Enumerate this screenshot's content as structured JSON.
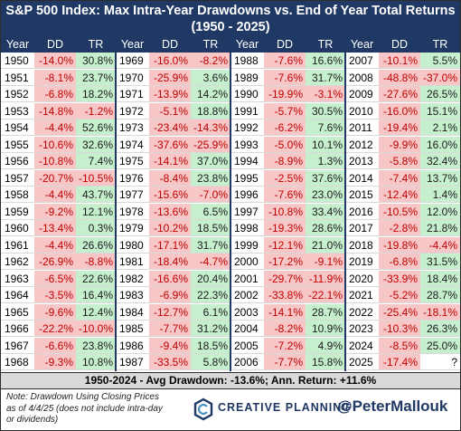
{
  "chart_data": {
    "type": "table",
    "title": "S&P 500 Index: Max Intra-Year Drawdowns vs. End of Year Total Returns",
    "subtitle": "(1950 - 2025)",
    "columns": [
      "Year",
      "DD",
      "TR"
    ],
    "rows": [
      {
        "year": "1950",
        "dd": "-14.0%",
        "tr": "30.8%"
      },
      {
        "year": "1951",
        "dd": "-8.1%",
        "tr": "23.7%"
      },
      {
        "year": "1952",
        "dd": "-6.8%",
        "tr": "18.2%"
      },
      {
        "year": "1953",
        "dd": "-14.8%",
        "tr": "-1.2%"
      },
      {
        "year": "1954",
        "dd": "-4.4%",
        "tr": "52.6%"
      },
      {
        "year": "1955",
        "dd": "-10.6%",
        "tr": "32.6%"
      },
      {
        "year": "1956",
        "dd": "-10.8%",
        "tr": "7.4%"
      },
      {
        "year": "1957",
        "dd": "-20.7%",
        "tr": "-10.5%"
      },
      {
        "year": "1958",
        "dd": "-4.4%",
        "tr": "43.7%"
      },
      {
        "year": "1959",
        "dd": "-9.2%",
        "tr": "12.1%"
      },
      {
        "year": "1960",
        "dd": "-13.4%",
        "tr": "0.3%"
      },
      {
        "year": "1961",
        "dd": "-4.4%",
        "tr": "26.6%"
      },
      {
        "year": "1962",
        "dd": "-26.9%",
        "tr": "-8.8%"
      },
      {
        "year": "1963",
        "dd": "-6.5%",
        "tr": "22.6%"
      },
      {
        "year": "1964",
        "dd": "-3.5%",
        "tr": "16.4%"
      },
      {
        "year": "1965",
        "dd": "-9.6%",
        "tr": "12.4%"
      },
      {
        "year": "1966",
        "dd": "-22.2%",
        "tr": "-10.0%"
      },
      {
        "year": "1967",
        "dd": "-6.6%",
        "tr": "23.8%"
      },
      {
        "year": "1968",
        "dd": "-9.3%",
        "tr": "10.8%"
      },
      {
        "year": "1969",
        "dd": "-16.0%",
        "tr": "-8.2%"
      },
      {
        "year": "1970",
        "dd": "-25.9%",
        "tr": "3.6%"
      },
      {
        "year": "1971",
        "dd": "-13.9%",
        "tr": "14.2%"
      },
      {
        "year": "1972",
        "dd": "-5.1%",
        "tr": "18.8%"
      },
      {
        "year": "1973",
        "dd": "-23.4%",
        "tr": "-14.3%"
      },
      {
        "year": "1974",
        "dd": "-37.6%",
        "tr": "-25.9%"
      },
      {
        "year": "1975",
        "dd": "-14.1%",
        "tr": "37.0%"
      },
      {
        "year": "1976",
        "dd": "-8.4%",
        "tr": "23.8%"
      },
      {
        "year": "1977",
        "dd": "-15.6%",
        "tr": "-7.0%"
      },
      {
        "year": "1978",
        "dd": "-13.6%",
        "tr": "6.5%"
      },
      {
        "year": "1979",
        "dd": "-10.2%",
        "tr": "18.5%"
      },
      {
        "year": "1980",
        "dd": "-17.1%",
        "tr": "31.7%"
      },
      {
        "year": "1981",
        "dd": "-18.4%",
        "tr": "-4.7%"
      },
      {
        "year": "1982",
        "dd": "-16.6%",
        "tr": "20.4%"
      },
      {
        "year": "1983",
        "dd": "-6.9%",
        "tr": "22.3%"
      },
      {
        "year": "1984",
        "dd": "-12.7%",
        "tr": "6.1%"
      },
      {
        "year": "1985",
        "dd": "-7.7%",
        "tr": "31.2%"
      },
      {
        "year": "1986",
        "dd": "-9.4%",
        "tr": "18.5%"
      },
      {
        "year": "1987",
        "dd": "-33.5%",
        "tr": "5.8%"
      },
      {
        "year": "1988",
        "dd": "-7.6%",
        "tr": "16.6%"
      },
      {
        "year": "1989",
        "dd": "-7.6%",
        "tr": "31.7%"
      },
      {
        "year": "1990",
        "dd": "-19.9%",
        "tr": "-3.1%"
      },
      {
        "year": "1991",
        "dd": "-5.7%",
        "tr": "30.5%"
      },
      {
        "year": "1992",
        "dd": "-6.2%",
        "tr": "7.6%"
      },
      {
        "year": "1993",
        "dd": "-5.0%",
        "tr": "10.1%"
      },
      {
        "year": "1994",
        "dd": "-8.9%",
        "tr": "1.3%"
      },
      {
        "year": "1995",
        "dd": "-2.5%",
        "tr": "37.6%"
      },
      {
        "year": "1996",
        "dd": "-7.6%",
        "tr": "23.0%"
      },
      {
        "year": "1997",
        "dd": "-10.8%",
        "tr": "33.4%"
      },
      {
        "year": "1998",
        "dd": "-19.3%",
        "tr": "28.6%"
      },
      {
        "year": "1999",
        "dd": "-12.1%",
        "tr": "21.0%"
      },
      {
        "year": "2000",
        "dd": "-17.2%",
        "tr": "-9.1%"
      },
      {
        "year": "2001",
        "dd": "-29.7%",
        "tr": "-11.9%"
      },
      {
        "year": "2002",
        "dd": "-33.8%",
        "tr": "-22.1%"
      },
      {
        "year": "2003",
        "dd": "-14.1%",
        "tr": "28.7%"
      },
      {
        "year": "2004",
        "dd": "-8.2%",
        "tr": "10.9%"
      },
      {
        "year": "2005",
        "dd": "-7.2%",
        "tr": "4.9%"
      },
      {
        "year": "2006",
        "dd": "-7.7%",
        "tr": "15.8%"
      },
      {
        "year": "2007",
        "dd": "-10.1%",
        "tr": "5.5%"
      },
      {
        "year": "2008",
        "dd": "-48.8%",
        "tr": "-37.0%"
      },
      {
        "year": "2009",
        "dd": "-27.6%",
        "tr": "26.5%"
      },
      {
        "year": "2010",
        "dd": "-16.0%",
        "tr": "15.1%"
      },
      {
        "year": "2011",
        "dd": "-19.4%",
        "tr": "2.1%"
      },
      {
        "year": "2012",
        "dd": "-9.9%",
        "tr": "16.0%"
      },
      {
        "year": "2013",
        "dd": "-5.8%",
        "tr": "32.4%"
      },
      {
        "year": "2014",
        "dd": "-7.4%",
        "tr": "13.7%"
      },
      {
        "year": "2015",
        "dd": "-12.4%",
        "tr": "1.4%"
      },
      {
        "year": "2016",
        "dd": "-10.5%",
        "tr": "12.0%"
      },
      {
        "year": "2017",
        "dd": "-2.8%",
        "tr": "21.8%"
      },
      {
        "year": "2018",
        "dd": "-19.8%",
        "tr": "-4.4%"
      },
      {
        "year": "2019",
        "dd": "-6.8%",
        "tr": "31.5%"
      },
      {
        "year": "2020",
        "dd": "-33.9%",
        "tr": "18.4%"
      },
      {
        "year": "2021",
        "dd": "-5.2%",
        "tr": "28.7%"
      },
      {
        "year": "2022",
        "dd": "-25.4%",
        "tr": "-18.1%"
      },
      {
        "year": "2023",
        "dd": "-10.3%",
        "tr": "26.3%"
      },
      {
        "year": "2024",
        "dd": "-8.5%",
        "tr": "25.0%"
      },
      {
        "year": "2025",
        "dd": "-17.4%",
        "tr": "?"
      }
    ],
    "summary": "1950-2024 - Avg Drawdown: -13.6%; Ann. Return: +11.6%"
  },
  "footer": {
    "note": "Note: Drawdown Using Closing Prices as of 4/4/25 (does not include intra-day or dividends)",
    "brand": "CREATIVE PLANNING",
    "handle": "@PeterMallouk"
  },
  "colors": {
    "navy": "#1f3864",
    "red_fill": "#f7c6c6",
    "green_fill": "#c6efce",
    "red_text": "#c00000"
  },
  "icons": {
    "logo": "creative-planning-logo-icon"
  }
}
